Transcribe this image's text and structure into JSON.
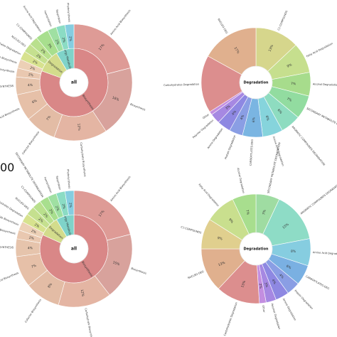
{
  "side_label": "00",
  "chart_data": [
    {
      "type": "sunburst",
      "center_label": "all",
      "inner_ring": [
        {
          "name": "Biosynthesis",
          "value": 66,
          "color": "#d98787"
        },
        {
          "name": "Degradation",
          "value": 9,
          "color": "#d3dc8c"
        },
        {
          "name": "Energy Metabolism",
          "value": 7,
          "color": "#7fd3c9"
        }
      ],
      "outer_ring": [
        {
          "name": "Amino Acid Biosynthesis",
          "value": 17,
          "label": "17%",
          "color": "#de9b96"
        },
        {
          "name": "Biosynthesis",
          "value": 16,
          "label": "16%",
          "color": "#d8a29c"
        },
        {
          "name": "Carbohydrate Biosynthesis",
          "value": 12,
          "label": "12%",
          "color": "#e4b5a3"
        },
        {
          "name": "Cofactor Biosynthesis",
          "value": 7,
          "label": "7%",
          "color": "#e3bca5"
        },
        {
          "name": "Fatty Acid Biosynthesis",
          "value": 6,
          "label": "6%",
          "color": "#e6c0a8"
        },
        {
          "name": "SECONDARY-METABOLITE-BIOSYNTHESIS",
          "value": 4,
          "label": "4%",
          "color": "#e6c4ac"
        },
        {
          "name": "Cell Structure Biosynthesis",
          "value": 2,
          "label": "2%",
          "color": "#e9c8b0"
        },
        {
          "name": "Nucleotide Biosynthesis",
          "value": 2,
          "label": "2%",
          "color": "#ecd0b6"
        },
        {
          "name": "Carbohydrates Degradation",
          "value": 2,
          "label": "2%",
          "color": "#d7e28e"
        },
        {
          "name": "NUCLEO-DEG",
          "value": 2,
          "label": "2%",
          "color": "#c5e08f"
        },
        {
          "name": "C1-COMPOUNDS",
          "value": 2,
          "label": "2%",
          "color": "#b9e08d"
        },
        {
          "name": "Amino Acid Degradation",
          "value": 3,
          "label": "3%",
          "color": "#a8df8e"
        },
        {
          "name": "Fermentation",
          "value": 2,
          "label": "2%",
          "color": "#9fe0a2"
        },
        {
          "name": "Respiration",
          "value": 2,
          "label": "2%",
          "color": "#8bdcc4"
        },
        {
          "name": "Photosynthesis",
          "value": 2,
          "label": "2%",
          "color": "#85cde0"
        }
      ]
    },
    {
      "type": "pie",
      "center_label": "Degradation",
      "slices": [
        {
          "name": "C1-COMPOUNDS",
          "value": 13,
          "label": "13%",
          "color": "#d6d68c"
        },
        {
          "name": "Fatty Acid Degradation",
          "value": 9,
          "label": "9%",
          "color": "#c6df8e"
        },
        {
          "name": "Alcohol Degradation",
          "value": 7,
          "label": "7%",
          "color": "#a7dc8c"
        },
        {
          "name": "SECONDARY METABOLITE DEGRADATION",
          "value": 7,
          "label": "7%",
          "color": "#92dca0"
        },
        {
          "name": "AROMATIC COMPOUNDS DEGRADATION",
          "value": 6,
          "label": "6%",
          "color": "#8edcc0"
        },
        {
          "name": "Amino Acid Degradation",
          "value": 6,
          "label": "6%",
          "color": "#86d4dc"
        },
        {
          "name": "CARBOXYLATES-DEG",
          "value": 6,
          "label": "6%",
          "color": "#7ab5e2"
        },
        {
          "name": "Protein Degradation",
          "value": 4,
          "label": "4%",
          "color": "#8a9ee4"
        },
        {
          "name": "Amine Degradation",
          "value": 4,
          "label": "4%",
          "color": "#8e88e2"
        },
        {
          "name": "Polymer Degradation",
          "value": 3,
          "label": "3%",
          "color": "#a688e2"
        },
        {
          "name": "Other",
          "value": 1,
          "label": "",
          "color": "#c38ee0"
        },
        {
          "name": "Carbohydrates Degradation",
          "value": 17,
          "label": "",
          "color": "#dc8e8e"
        },
        {
          "name": "NUCLEO-DEG",
          "value": 17,
          "label": "17%",
          "color": "#e0b08e"
        }
      ]
    },
    {
      "type": "sunburst",
      "center_label": "all",
      "inner_ring": [
        {
          "name": "Biosynthesis",
          "value": 67,
          "color": "#d98787"
        },
        {
          "name": "Degradation",
          "value": 8,
          "color": "#d3dc8c"
        },
        {
          "name": "Energy Metabolism",
          "value": 7,
          "color": "#7fd3c9"
        }
      ],
      "outer_ring": [
        {
          "name": "Amino Acid Biosynthesis",
          "value": 17,
          "label": "17%",
          "color": "#de9b96"
        },
        {
          "name": "Biosynthesis",
          "value": 15,
          "label": "15%",
          "color": "#d8a29c"
        },
        {
          "name": "Carbohydrate Biosynthesis",
          "value": 12,
          "label": "12%",
          "color": "#e4b5a3"
        },
        {
          "name": "Cofactor Biosynthesis",
          "value": 8,
          "label": "8%",
          "color": "#e3bca5"
        },
        {
          "name": "Fatty Acid Biosynthesis",
          "value": 7,
          "label": "7%",
          "color": "#e6c0a8"
        },
        {
          "name": "SECONDARY-METABOLITE-BIOSYNTHESIS",
          "value": 4,
          "label": "4%",
          "color": "#e6c4ac"
        },
        {
          "name": "Cell Structure Biosynthesis",
          "value": 2,
          "label": "2%",
          "color": "#e9c8b0"
        },
        {
          "name": "Nucleotide Biosynthesis",
          "value": 2,
          "label": "2%",
          "color": "#ecd0b6"
        },
        {
          "name": "Carbohydrates Degradation",
          "value": 2,
          "label": "2%",
          "color": "#d7e28e"
        },
        {
          "name": "NUCLEO-DEG",
          "value": 2,
          "label": "2%",
          "color": "#c5e08f"
        },
        {
          "name": "C1-COMPOUNDS",
          "value": 2,
          "label": "2%",
          "color": "#b9e08d"
        },
        {
          "name": "SECONDARY METABOLITE DEGRADATION",
          "value": 2,
          "label": "2%",
          "color": "#a8df8e"
        },
        {
          "name": "Fermentation",
          "value": 2,
          "label": "2%",
          "color": "#9fe0a2"
        },
        {
          "name": "Respiration",
          "value": 2,
          "label": "2%",
          "color": "#8bdcc4"
        },
        {
          "name": "Photosynthesis",
          "value": 2,
          "label": "2%",
          "color": "#85cde0"
        }
      ]
    },
    {
      "type": "pie",
      "center_label": "Degradation",
      "slices": [
        {
          "name": "SECONDARY METABOLITE DEGRADATION",
          "value": 7,
          "label": "7%",
          "color": "#9fdca2"
        },
        {
          "name": "AROMATIC COMPOUNDS DEGRADATION",
          "value": 15,
          "label": "15%",
          "color": "#8edcc6"
        },
        {
          "name": "Amino Acid Degradation",
          "value": 8,
          "label": "8%",
          "color": "#86cde0"
        },
        {
          "name": "CARBOXYLATES-DEG",
          "value": 6,
          "label": "6%",
          "color": "#7ab0e2"
        },
        {
          "name": "Protein Degradation",
          "value": 4,
          "label": "4%",
          "color": "#8a9ee4"
        },
        {
          "name": "Amine Degradation",
          "value": 4,
          "label": "4%",
          "color": "#8e88e2"
        },
        {
          "name": "Polymer Degradation",
          "value": 3,
          "label": "3%",
          "color": "#a688e2"
        },
        {
          "name": "Other",
          "value": 2,
          "label": "2%",
          "color": "#c38ee0"
        },
        {
          "name": "Carbohydrates Degradation",
          "value": 13,
          "label": "13%",
          "color": "#dc8e8e"
        },
        {
          "name": "NUCLEO-DEG",
          "value": 13,
          "label": "13%",
          "color": "#e0b08e"
        },
        {
          "name": "C1-COMPOUNDS",
          "value": 9,
          "label": "9%",
          "color": "#e0cf8e"
        },
        {
          "name": "Fatty Acid Degradation",
          "value": 9,
          "label": "9%",
          "color": "#c9df8e"
        },
        {
          "name": "Alcohol Degradation",
          "value": 7,
          "label": "7%",
          "color": "#a8de8e"
        }
      ]
    }
  ]
}
